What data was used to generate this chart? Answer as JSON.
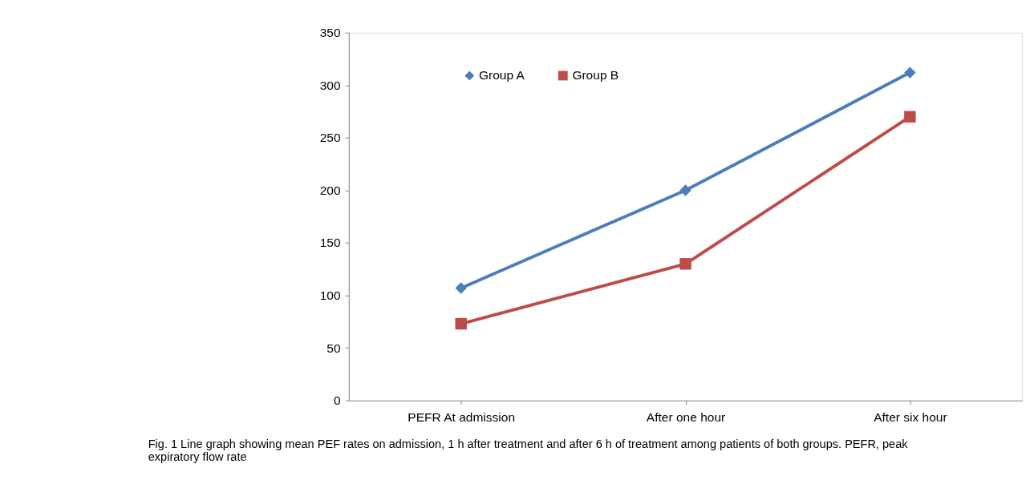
{
  "chart_data": {
    "type": "line",
    "categories": [
      "PEFR At admission",
      "After one hour",
      "After six hour"
    ],
    "series": [
      {
        "name": "Group A",
        "color": "#4a7ebb",
        "marker": "diamond",
        "values": [
          107,
          200,
          312
        ]
      },
      {
        "name": "Group B",
        "color": "#be4b48",
        "marker": "square",
        "values": [
          73,
          130,
          270
        ]
      }
    ],
    "ylim": [
      0,
      350
    ],
    "yticks": [
      0,
      50,
      100,
      150,
      200,
      250,
      300,
      350
    ],
    "grid": false,
    "legend": "top left",
    "line_style": "solid",
    "annotations": [
      "Fig. 1  Line graph showing mean PEF rates on admission, 1 h after treatment and after 6 h of treatment among patients of both groups. PEFR, peak expiratory flow rate"
    ]
  }
}
